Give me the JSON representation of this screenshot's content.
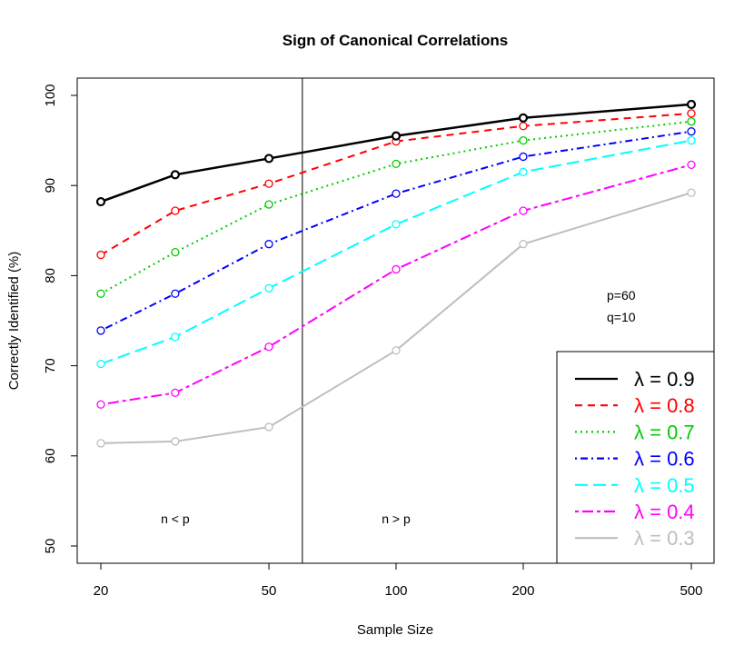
{
  "chart_data": {
    "type": "line",
    "title": "Sign of Canonical Correlations",
    "xlabel": "Sample Size",
    "ylabel": "Correctly Identified (%)",
    "x_scale": "log",
    "x": [
      20,
      30,
      50,
      100,
      200,
      500
    ],
    "x_ticks": [
      20,
      50,
      100,
      200,
      500
    ],
    "y_ticks": [
      50,
      60,
      70,
      80,
      90,
      100
    ],
    "ylim": [
      50,
      100
    ],
    "vline_x": 60,
    "annotations": [
      {
        "text": "n < p",
        "x": 30,
        "y": 53
      },
      {
        "text": "n > p",
        "x": 100,
        "y": 53
      },
      {
        "text": "p=60",
        "x": 360,
        "y": 77.8
      },
      {
        "text": "q=10",
        "x": 360,
        "y": 75.4
      }
    ],
    "legend_position": "bottom-right",
    "series": [
      {
        "name": "λ = 0.9",
        "color": "#000000",
        "dash": "",
        "values": [
          88.2,
          91.2,
          93.0,
          95.5,
          97.5,
          99.0
        ]
      },
      {
        "name": "λ = 0.8",
        "color": "#ff0000",
        "dash": "8,6",
        "values": [
          82.3,
          87.2,
          90.2,
          94.9,
          96.6,
          98.0
        ]
      },
      {
        "name": "λ = 0.7",
        "color": "#00cd00",
        "dash": "2,4",
        "values": [
          78.0,
          82.6,
          87.9,
          92.4,
          95.0,
          97.1
        ]
      },
      {
        "name": "λ = 0.6",
        "color": "#0000ff",
        "dash": "2,4,8,4",
        "values": [
          73.9,
          78.0,
          83.5,
          89.1,
          93.2,
          96.0
        ]
      },
      {
        "name": "λ = 0.5",
        "color": "#00ffff",
        "dash": "14,6",
        "values": [
          70.2,
          73.2,
          78.6,
          85.7,
          91.5,
          95.0
        ]
      },
      {
        "name": "λ = 0.4",
        "color": "#ff00ff",
        "dash": "4,4,12,4",
        "values": [
          65.7,
          67.0,
          72.1,
          80.7,
          87.2,
          92.3
        ]
      },
      {
        "name": "λ = 0.3",
        "color": "#bebebe",
        "dash": "",
        "values": [
          61.4,
          61.6,
          63.2,
          71.7,
          83.5,
          89.2
        ]
      }
    ]
  }
}
